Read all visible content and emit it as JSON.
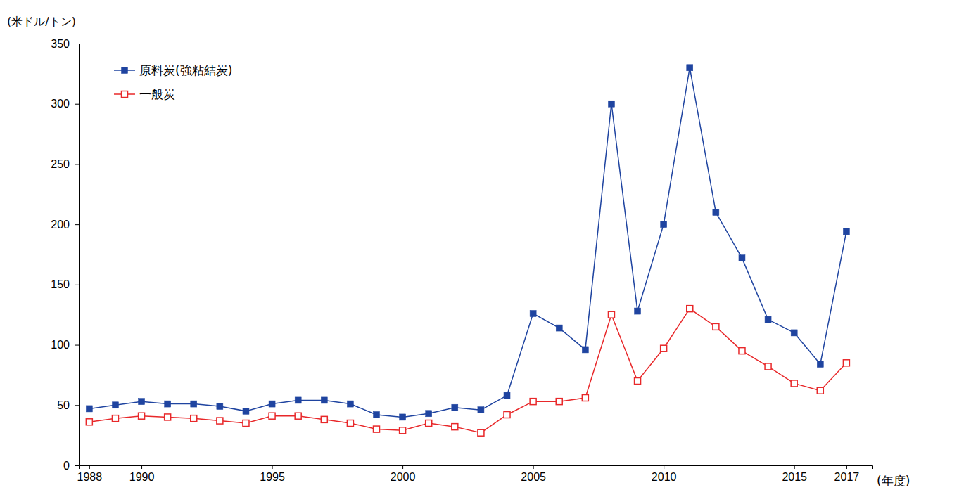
{
  "chart_data": {
    "type": "line",
    "y_label": "(米ドル/トン)",
    "x_label": "(年度)",
    "x": [
      1988,
      1989,
      1990,
      1991,
      1992,
      1993,
      1994,
      1995,
      1996,
      1997,
      1998,
      1999,
      2000,
      2001,
      2002,
      2003,
      2004,
      2005,
      2006,
      2007,
      2008,
      2009,
      2010,
      2011,
      2012,
      2013,
      2014,
      2015,
      2016,
      2017
    ],
    "series": [
      {
        "name": "原料炭(強粘結炭)",
        "color": "#1f44a0",
        "marker": "square",
        "values": [
          47,
          50,
          53,
          51,
          51,
          49,
          45,
          51,
          54,
          54,
          51,
          42,
          40,
          43,
          48,
          46,
          58,
          126,
          114,
          96,
          300,
          128,
          200,
          330,
          210,
          172,
          121,
          110,
          84,
          194
        ]
      },
      {
        "name": "一般炭",
        "color": "#e8282a",
        "marker": "open-square",
        "values": [
          36,
          39,
          41,
          40,
          39,
          37,
          35,
          41,
          41,
          38,
          35,
          30,
          29,
          35,
          32,
          27,
          42,
          53,
          53,
          56,
          125,
          70,
          97,
          130,
          115,
          95,
          82,
          68,
          62,
          85
        ]
      }
    ],
    "xlim": [
      1987.6,
      2018
    ],
    "xticks": [
      1988,
      1990,
      1995,
      2000,
      2005,
      2010,
      2015,
      2017
    ],
    "ylim": [
      0,
      350
    ],
    "yticks": [
      0,
      50,
      100,
      150,
      200,
      250,
      300,
      350
    ],
    "grid": false,
    "legend": "top-left"
  }
}
